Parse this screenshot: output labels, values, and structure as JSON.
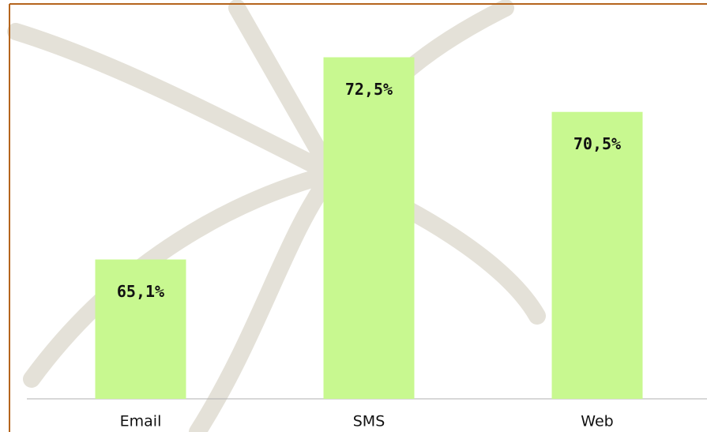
{
  "chart_data": {
    "type": "bar",
    "categories": [
      "Email",
      "SMS",
      "Web"
    ],
    "values": [
      65.1,
      72.5,
      70.5
    ],
    "value_labels": [
      "65,1%",
      "72,5%",
      "70,5%"
    ],
    "color": "#c8f890",
    "ylim": [
      60,
      75
    ]
  }
}
